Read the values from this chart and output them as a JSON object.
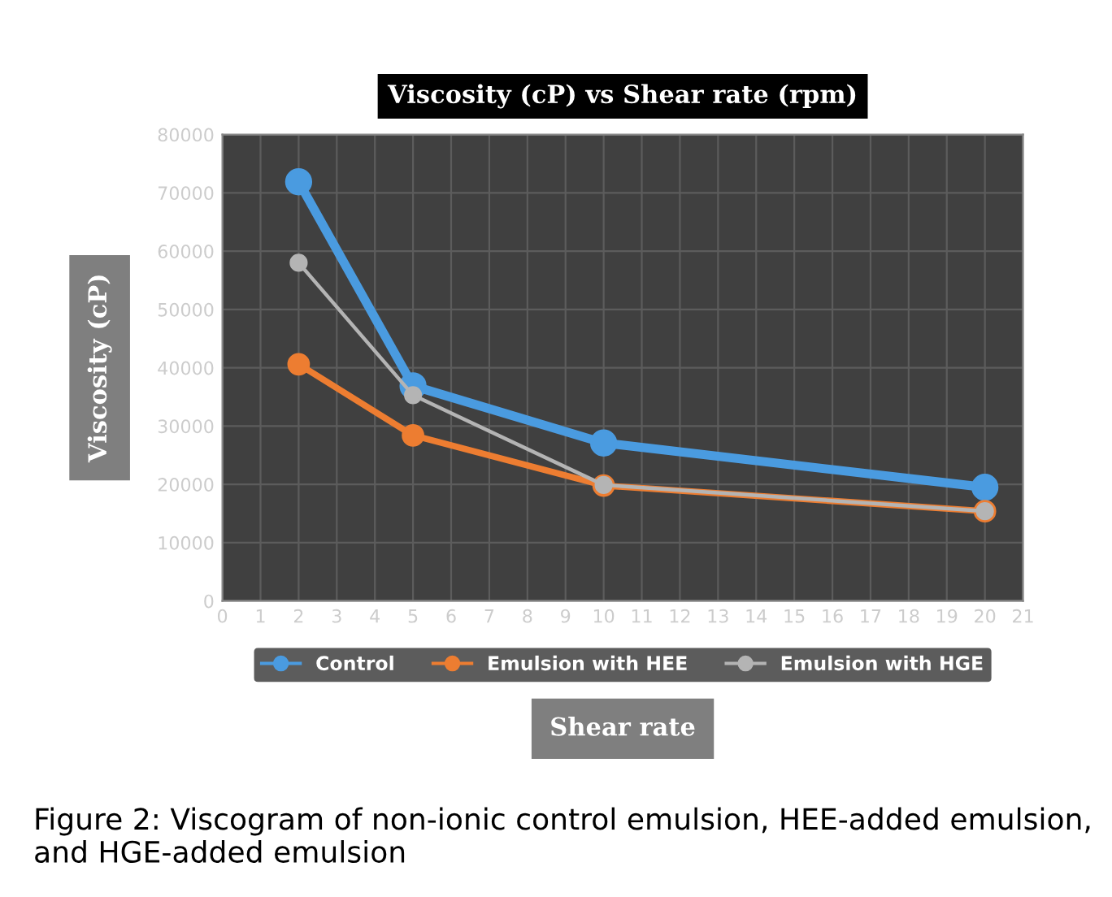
{
  "chart_data": {
    "type": "line",
    "title": "Viscosity (cP) vs Shear rate (rpm)",
    "xlabel": "Shear rate",
    "ylabel": "Viscosity (cP)",
    "x": [
      2,
      5,
      10,
      20
    ],
    "series": [
      {
        "name": "Control",
        "color": "#4a9be0",
        "values": [
          71900,
          36900,
          27100,
          19500
        ]
      },
      {
        "name": "Emulsion with HEE",
        "color": "#ed7d31",
        "values": [
          40600,
          28400,
          19800,
          15400
        ]
      },
      {
        "name": "Emulsion with HGE",
        "color": "#b4b4b4",
        "values": [
          58000,
          35300,
          19900,
          15400
        ]
      }
    ],
    "xlim": [
      0,
      21
    ],
    "xticks": [
      0,
      1,
      2,
      3,
      4,
      5,
      6,
      7,
      8,
      9,
      10,
      11,
      12,
      13,
      14,
      15,
      16,
      17,
      18,
      19,
      20,
      21
    ],
    "ylim": [
      0,
      80000
    ],
    "yticks": [
      0,
      10000,
      20000,
      30000,
      40000,
      50000,
      60000,
      70000,
      80000
    ],
    "grid": true,
    "legend": "bottom",
    "marker": "circle",
    "line_style": "solid",
    "annotations": [
      "Figure 2: Viscogram of non-ionic control emulsion, HEE-added emulsion, and HGE-added emulsion"
    ]
  }
}
